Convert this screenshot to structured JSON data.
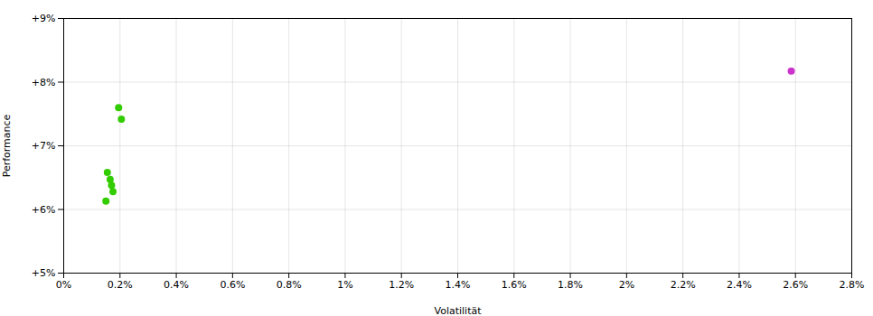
{
  "chart_data": {
    "type": "scatter",
    "xlabel": "Volatilität",
    "ylabel": "Performance",
    "xlim": [
      0.0,
      0.028
    ],
    "ylim": [
      0.05,
      0.09
    ],
    "xticks": [
      {
        "value": 0.0,
        "label": "0%"
      },
      {
        "value": 0.002,
        "label": "0.2%"
      },
      {
        "value": 0.004,
        "label": "0.4%"
      },
      {
        "value": 0.006,
        "label": "0.6%"
      },
      {
        "value": 0.008,
        "label": "0.8%"
      },
      {
        "value": 0.01,
        "label": "1%"
      },
      {
        "value": 0.012,
        "label": "1.2%"
      },
      {
        "value": 0.014,
        "label": "1.4%"
      },
      {
        "value": 0.016,
        "label": "1.6%"
      },
      {
        "value": 0.018,
        "label": "1.8%"
      },
      {
        "value": 0.02,
        "label": "2%"
      },
      {
        "value": 0.022,
        "label": "2.2%"
      },
      {
        "value": 0.024,
        "label": "2.4%"
      },
      {
        "value": 0.026,
        "label": "2.6%"
      },
      {
        "value": 0.028,
        "label": "2.8%"
      }
    ],
    "yticks": [
      {
        "value": 0.05,
        "label": "+5%"
      },
      {
        "value": 0.06,
        "label": "+6%"
      },
      {
        "value": 0.07,
        "label": "+7%"
      },
      {
        "value": 0.08,
        "label": "+8%"
      },
      {
        "value": 0.09,
        "label": "+9%"
      }
    ],
    "grid": true,
    "series": [
      {
        "color": "#33cc00",
        "x": [
          0.00195,
          0.00205,
          0.00155,
          0.00165,
          0.0017,
          0.00175,
          0.0015
        ],
        "values": [
          0.076,
          0.0742,
          0.0658,
          0.0647,
          0.0638,
          0.0628,
          0.0613
        ]
      },
      {
        "color": "#cc33cc",
        "x": [
          0.02585
        ],
        "values": [
          0.08175
        ]
      }
    ]
  }
}
